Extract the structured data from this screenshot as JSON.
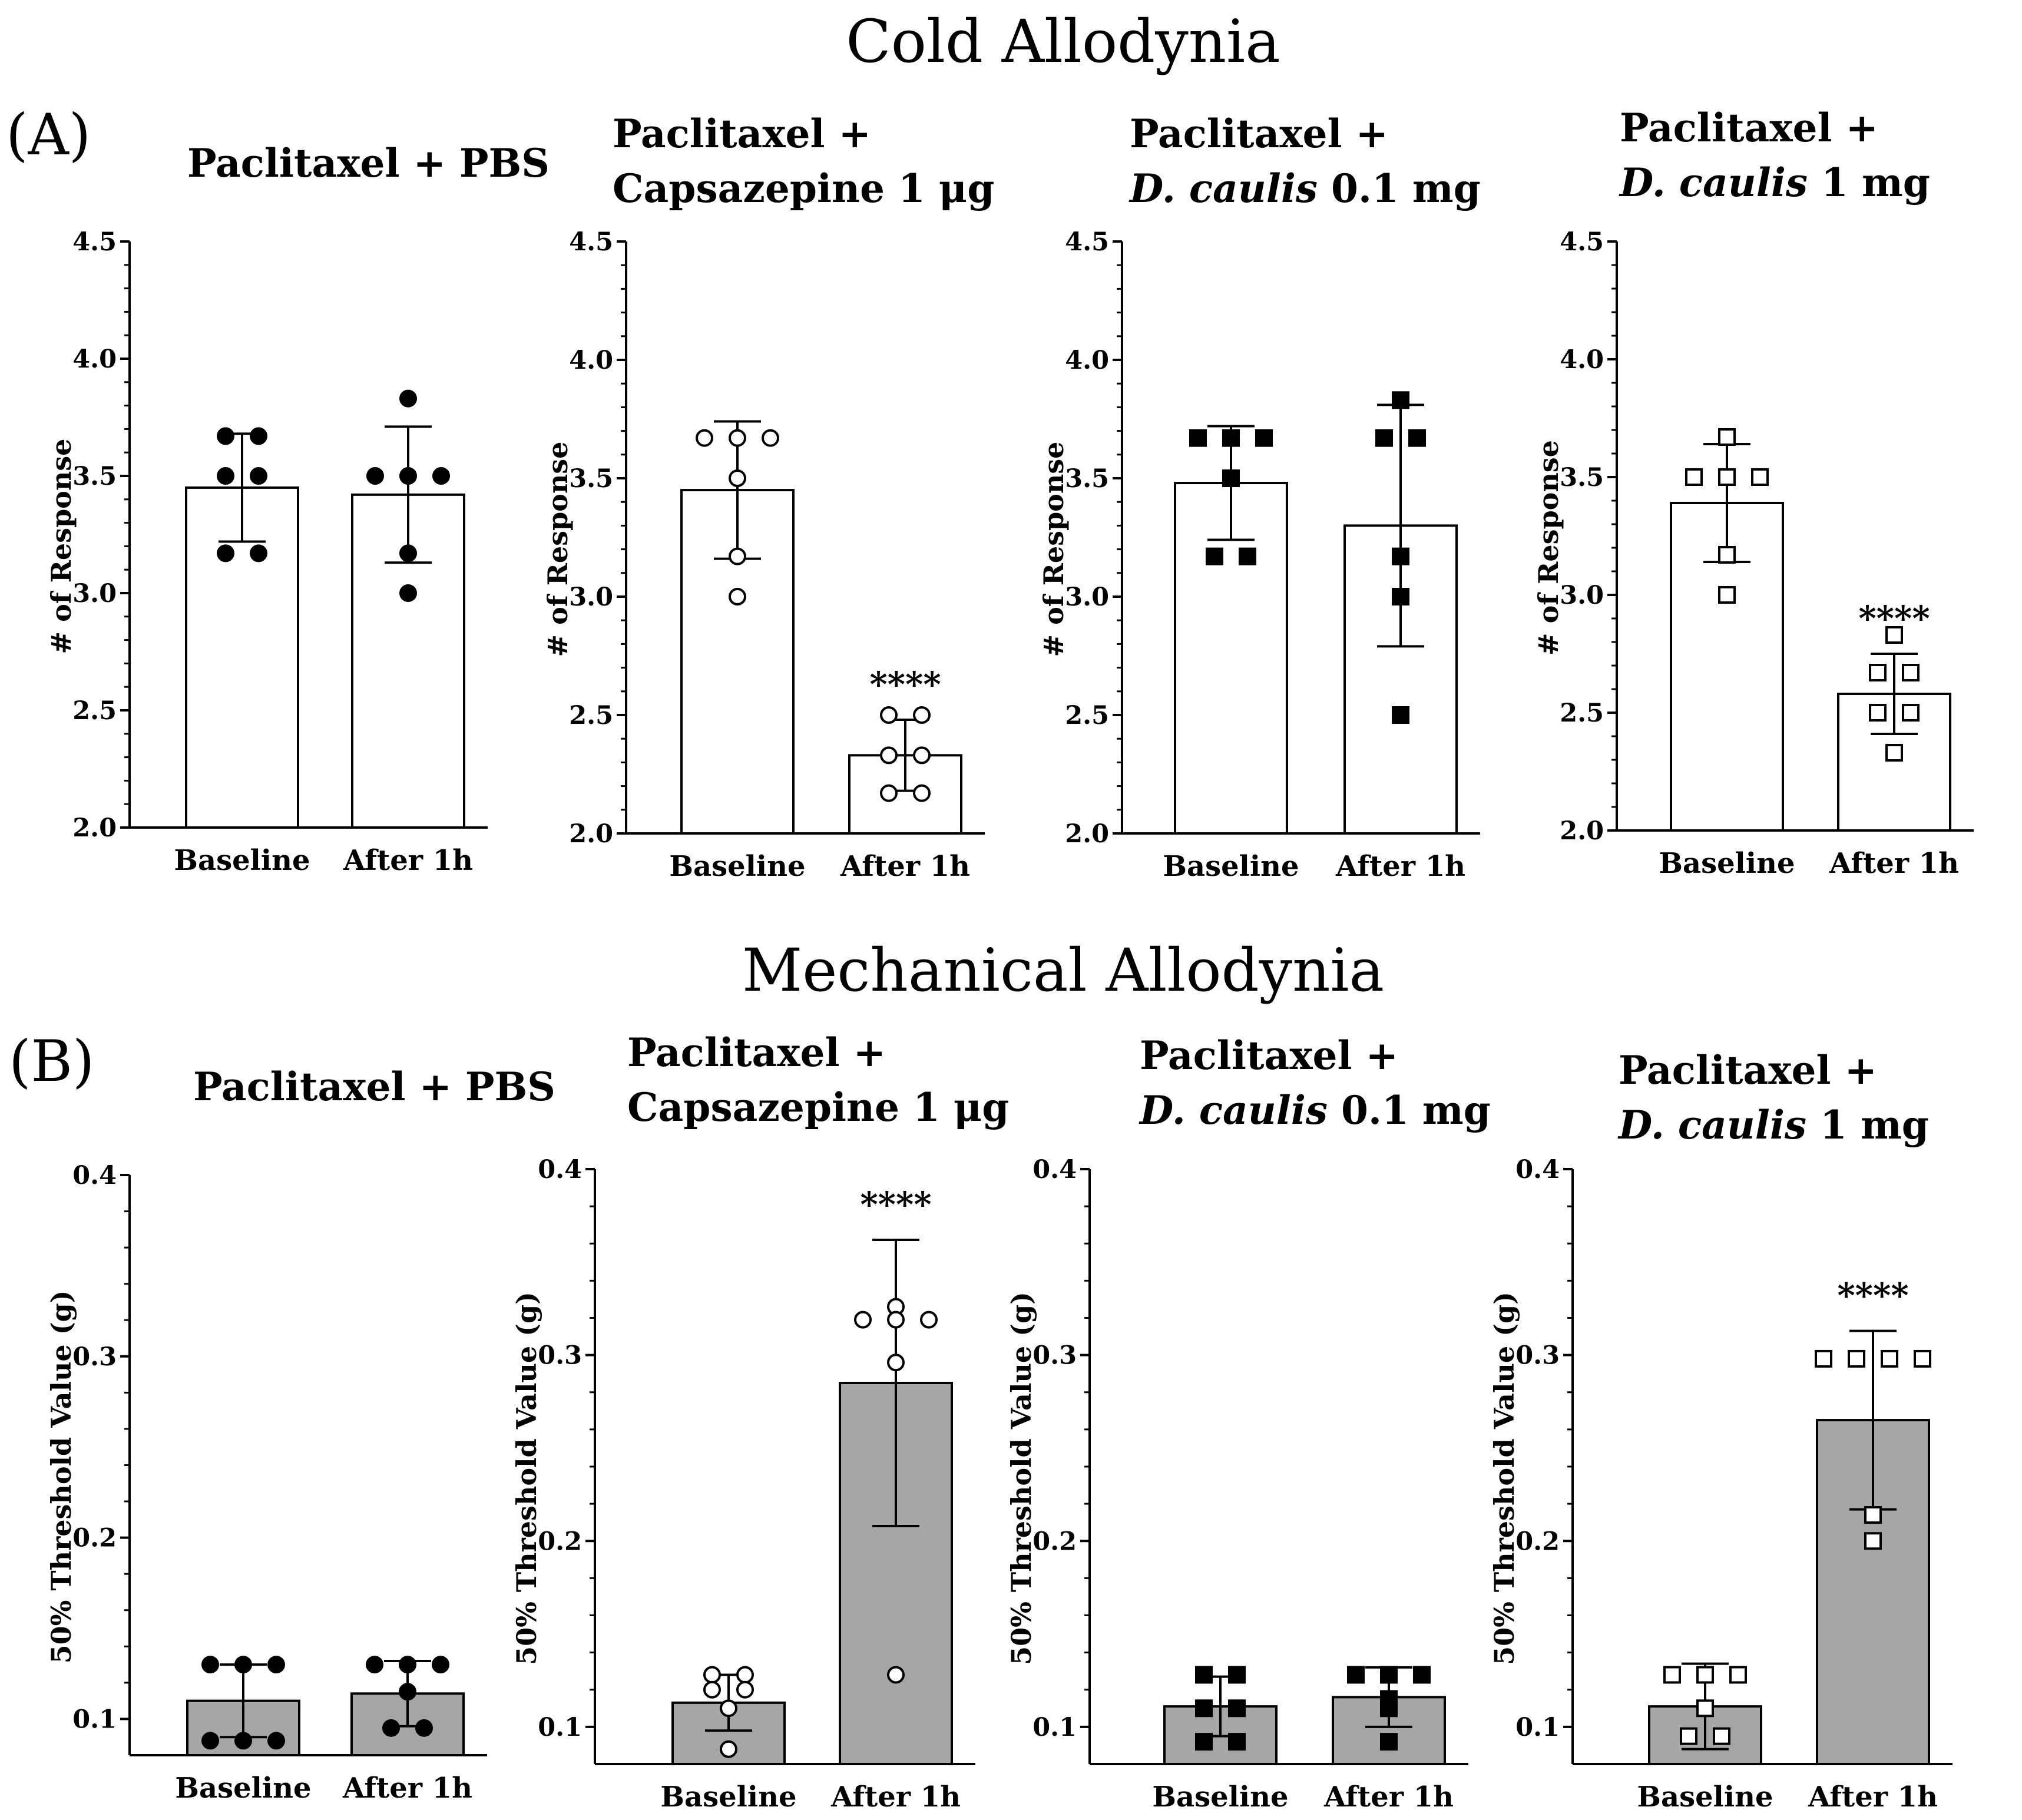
{
  "titles": {
    "section_a": "Cold Allodynia",
    "section_b": "Mechanical Allodynia",
    "label_a": "(A)",
    "label_b": "(B)"
  },
  "colors": {
    "cold_bar_fill": "#ffffff",
    "mech_bar_fill": "#a6a6a6",
    "stroke": "#000000"
  },
  "chart_data": [
    {
      "id": "A1",
      "type": "bar",
      "section": "Cold Allodynia",
      "title_lines": [
        [
          {
            "t": "Paclitaxel + PBS"
          }
        ]
      ],
      "ylabel": "# of Response",
      "ylim": [
        2.0,
        4.5
      ],
      "yticks": [
        2.0,
        2.5,
        3.0,
        3.5,
        4.0,
        4.5
      ],
      "ytick_labels": [
        "2.0",
        "2.5",
        "3.0",
        "3.5",
        "4.0",
        "4.5"
      ],
      "marker": "circle-filled",
      "categories": [
        "Baseline",
        "After 1h"
      ],
      "means": [
        3.45,
        3.42
      ],
      "sd": [
        0.23,
        0.29
      ],
      "points": [
        [
          3.67,
          3.67,
          3.5,
          3.5,
          3.17,
          3.17
        ],
        [
          3.83,
          3.5,
          3.5,
          3.5,
          3.17,
          3.0
        ]
      ],
      "significance": [
        "",
        ""
      ]
    },
    {
      "id": "A2",
      "type": "bar",
      "section": "Cold Allodynia",
      "title_lines": [
        [
          {
            "t": "Paclitaxel +"
          }
        ],
        [
          {
            "t": "Capsazepine 1 μg"
          }
        ]
      ],
      "ylabel": "# of Response",
      "ylim": [
        2.0,
        4.5
      ],
      "yticks": [
        2.0,
        2.5,
        3.0,
        3.5,
        4.0,
        4.5
      ],
      "ytick_labels": [
        "2.0",
        "2.5",
        "3.0",
        "3.5",
        "4.0",
        "4.5"
      ],
      "marker": "circle-open",
      "categories": [
        "Baseline",
        "After 1h"
      ],
      "means": [
        3.45,
        2.33
      ],
      "sd": [
        0.29,
        0.15
      ],
      "points": [
        [
          3.67,
          3.67,
          3.67,
          3.5,
          3.17,
          3.0
        ],
        [
          2.5,
          2.5,
          2.33,
          2.33,
          2.17,
          2.17
        ]
      ],
      "significance": [
        "",
        "****"
      ]
    },
    {
      "id": "A3",
      "type": "bar",
      "section": "Cold Allodynia",
      "title_lines": [
        [
          {
            "t": "Paclitaxel +"
          }
        ],
        [
          {
            "t": "D. caulis",
            "i": true
          },
          {
            "t": " 0.1 mg"
          }
        ]
      ],
      "ylabel": "# of Response",
      "ylim": [
        2.0,
        4.5
      ],
      "yticks": [
        2.0,
        2.5,
        3.0,
        3.5,
        4.0,
        4.5
      ],
      "ytick_labels": [
        "2.0",
        "2.5",
        "3.0",
        "3.5",
        "4.0",
        "4.5"
      ],
      "marker": "square-filled",
      "categories": [
        "Baseline",
        "After 1h"
      ],
      "means": [
        3.48,
        3.3
      ],
      "sd": [
        0.24,
        0.51
      ],
      "points": [
        [
          3.67,
          3.67,
          3.67,
          3.5,
          3.17,
          3.17
        ],
        [
          3.83,
          3.67,
          3.67,
          3.17,
          3.0,
          2.5
        ]
      ],
      "significance": [
        "",
        ""
      ]
    },
    {
      "id": "A4",
      "type": "bar",
      "section": "Cold Allodynia",
      "title_lines": [
        [
          {
            "t": "Paclitaxel +"
          }
        ],
        [
          {
            "t": "D. caulis",
            "i": true
          },
          {
            "t": " 1 mg"
          }
        ]
      ],
      "ylabel": "# of Response",
      "ylim": [
        2.0,
        4.5
      ],
      "yticks": [
        2.0,
        2.5,
        3.0,
        3.5,
        4.0,
        4.5
      ],
      "ytick_labels": [
        "2.0",
        "2.5",
        "3.0",
        "3.5",
        "4.0",
        "4.5"
      ],
      "marker": "square-open",
      "categories": [
        "Baseline",
        "After 1h"
      ],
      "means": [
        3.39,
        2.58
      ],
      "sd": [
        0.25,
        0.17
      ],
      "points": [
        [
          3.67,
          3.5,
          3.5,
          3.5,
          3.17,
          3.0
        ],
        [
          2.83,
          2.67,
          2.67,
          2.5,
          2.5,
          2.33
        ]
      ],
      "significance": [
        "",
        "****"
      ]
    },
    {
      "id": "B1",
      "type": "bar",
      "section": "Mechanical Allodynia",
      "title_lines": [
        [
          {
            "t": "Paclitaxel + PBS"
          }
        ]
      ],
      "ylabel": "50% Threshold Value (g)",
      "ylim": [
        0.08,
        0.4
      ],
      "yticks": [
        0.1,
        0.2,
        0.3,
        0.4
      ],
      "ytick_labels": [
        "0.1",
        "0.2",
        "0.3",
        "0.4"
      ],
      "marker": "circle-filled",
      "categories": [
        "Baseline",
        "After 1h"
      ],
      "means": [
        0.11,
        0.114
      ],
      "sd": [
        0.02,
        0.018
      ],
      "points": [
        [
          0.13,
          0.13,
          0.13,
          0.088,
          0.088,
          0.088
        ],
        [
          0.13,
          0.13,
          0.13,
          0.115,
          0.095,
          0.095
        ]
      ],
      "significance": [
        "",
        ""
      ]
    },
    {
      "id": "B2",
      "type": "bar",
      "section": "Mechanical Allodynia",
      "title_lines": [
        [
          {
            "t": "Paclitaxel +"
          }
        ],
        [
          {
            "t": "Capsazepine 1 μg"
          }
        ]
      ],
      "ylabel": "50% Threshold Value (g)",
      "ylim": [
        0.08,
        0.4
      ],
      "yticks": [
        0.1,
        0.2,
        0.3,
        0.4
      ],
      "ytick_labels": [
        "0.1",
        "0.2",
        "0.3",
        "0.4"
      ],
      "marker": "circle-open",
      "categories": [
        "Baseline",
        "After 1h"
      ],
      "means": [
        0.113,
        0.285
      ],
      "sd": [
        0.015,
        0.077
      ],
      "points": [
        [
          0.128,
          0.128,
          0.12,
          0.12,
          0.11,
          0.088
        ],
        [
          0.326,
          0.319,
          0.319,
          0.319,
          0.296,
          0.128
        ]
      ],
      "significance": [
        "",
        "****"
      ]
    },
    {
      "id": "B3",
      "type": "bar",
      "section": "Mechanical Allodynia",
      "title_lines": [
        [
          {
            "t": "Paclitaxel +"
          }
        ],
        [
          {
            "t": "D. caulis",
            "i": true
          },
          {
            "t": " 0.1 mg"
          }
        ]
      ],
      "ylabel": "50% Threshold Value (g)",
      "ylim": [
        0.08,
        0.4
      ],
      "yticks": [
        0.1,
        0.2,
        0.3,
        0.4
      ],
      "ytick_labels": [
        "0.1",
        "0.2",
        "0.3",
        "0.4"
      ],
      "marker": "square-filled",
      "categories": [
        "Baseline",
        "After 1h"
      ],
      "means": [
        0.111,
        0.116
      ],
      "sd": [
        0.016,
        0.016
      ],
      "points": [
        [
          0.128,
          0.128,
          0.11,
          0.11,
          0.092,
          0.092
        ],
        [
          0.128,
          0.128,
          0.128,
          0.115,
          0.11,
          0.092
        ]
      ],
      "significance": [
        "",
        ""
      ]
    },
    {
      "id": "B4",
      "type": "bar",
      "section": "Mechanical Allodynia",
      "title_lines": [
        [
          {
            "t": "Paclitaxel +"
          }
        ],
        [
          {
            "t": "D. caulis",
            "i": true
          },
          {
            "t": " 1 mg"
          }
        ]
      ],
      "ylabel": "50% Threshold Value (g)",
      "ylim": [
        0.08,
        0.4
      ],
      "yticks": [
        0.1,
        0.2,
        0.3,
        0.4
      ],
      "ytick_labels": [
        "0.1",
        "0.2",
        "0.3",
        "0.4"
      ],
      "marker": "square-open",
      "categories": [
        "Baseline",
        "After 1h"
      ],
      "means": [
        0.111,
        0.265
      ],
      "sd": [
        0.023,
        0.048
      ],
      "points": [
        [
          0.128,
          0.128,
          0.128,
          0.11,
          0.095,
          0.095
        ],
        [
          0.298,
          0.298,
          0.298,
          0.298,
          0.214,
          0.2
        ]
      ],
      "significance": [
        "",
        "****"
      ]
    }
  ]
}
